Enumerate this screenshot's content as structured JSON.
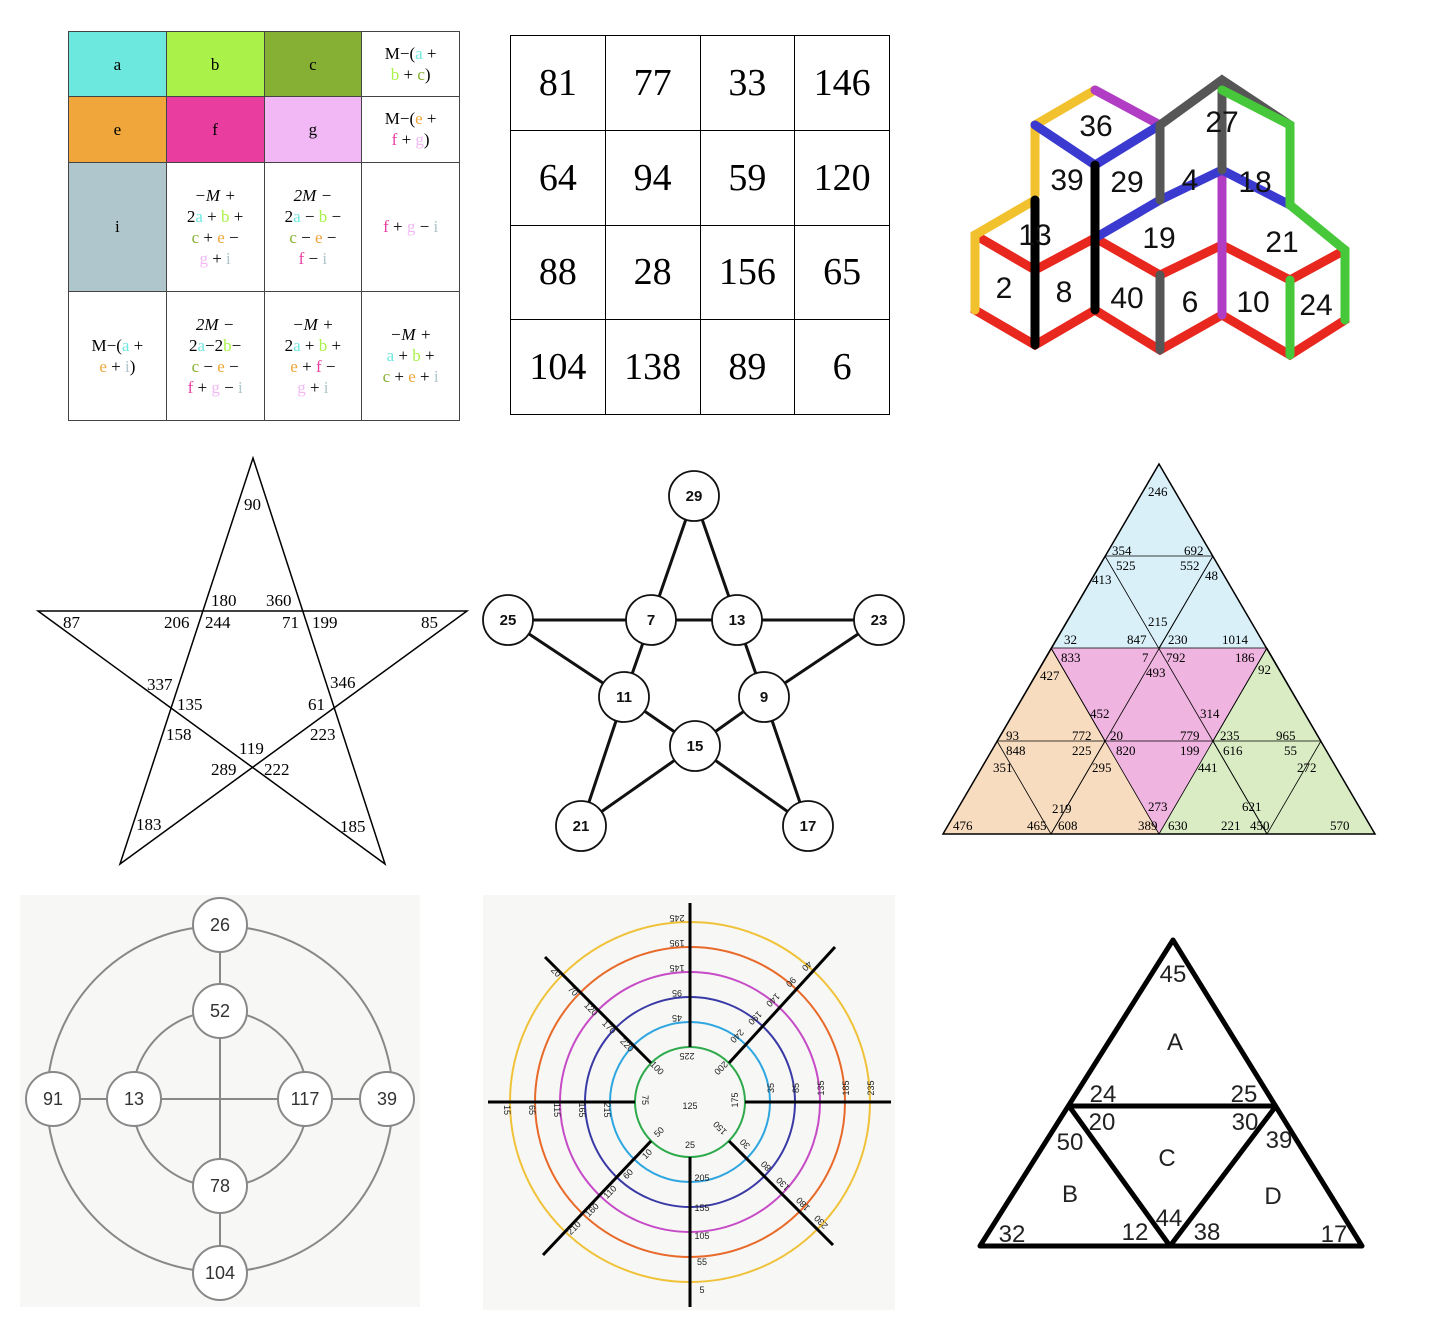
{
  "color_grid": {
    "colors": {
      "a": "#6ce8de",
      "b": "#aaf24a",
      "c": "#86b033",
      "e": "#f0a63a",
      "f": "#e93da0",
      "g": "#f2b8f6",
      "i": "#afc7cc"
    },
    "row1": {
      "a": "a",
      "b": "b",
      "c": "c",
      "d_prefix": "M−(",
      "d_a": "a",
      "d_plus1": " + ",
      "d_b": "b",
      "d_plus2": " + ",
      "d_c": "c",
      "d_suffix": ")"
    },
    "row2": {
      "e": "e",
      "f": "f",
      "g": "g",
      "d_prefix": "M−(",
      "d_e": "e",
      "d_plus1": " + ",
      "d_f": "f",
      "d_plus2": " + ",
      "d_g": "g",
      "d_suffix": ")"
    },
    "row3": {
      "i": "i",
      "b_t1": "−M +",
      "b_t2": "2",
      "b_a": "a",
      "b_p1": " + ",
      "b_b": "b",
      "b_p2": " +",
      "b_c": "c",
      "b_p3": " + ",
      "b_e": "e",
      "b_p4": " −",
      "b_g": "g",
      "b_p5": " + ",
      "b_i": "i",
      "c_t1": "2M −",
      "c_t2": "2",
      "c_a": "a",
      "c_m1": " − ",
      "c_b": "b",
      "c_m2": " −",
      "c_c": "c",
      "c_m3": " − ",
      "c_e": "e",
      "c_m4": " −",
      "c_f": "f",
      "c_m5": " − ",
      "c_i": "i",
      "d_f": "f",
      "d_p1": " + ",
      "d_g": "g",
      "d_m1": " − ",
      "d_i": "i"
    },
    "row4": {
      "a_prefix": "M−(",
      "a_a": "a",
      "a_p1": " +",
      "a_e": "e",
      "a_p2": " + ",
      "a_i": "i",
      "a_suffix": ")",
      "b_t1": "2M −",
      "b_t2": "2",
      "b_a": "a",
      "b_m1": "−2",
      "b_b": "b",
      "b_m2": "−",
      "b_c": "c",
      "b_m3": " − ",
      "b_e": "e",
      "b_m4": " −",
      "b_f": "f",
      "b_p1": " + ",
      "b_g": "g",
      "b_m5": " − ",
      "b_i": "i",
      "c_t1": "−M +",
      "c_t2": "2",
      "c_a": "a",
      "c_p1": " + ",
      "c_b": "b",
      "c_p2": " +",
      "c_e": "e",
      "c_p3": " + ",
      "c_f": "f",
      "c_m1": " −",
      "c_g": "g",
      "c_p4": " + ",
      "c_i": "i",
      "d_t1": "−M +",
      "d_a": "a",
      "d_p1": " + ",
      "d_b": "b",
      "d_p2": " +",
      "d_c": "c",
      "d_p3": " + ",
      "d_e": "e",
      "d_p4": " + ",
      "d_i": "i"
    }
  },
  "number_grid": {
    "rows": [
      [
        "81",
        "77",
        "33",
        "146"
      ],
      [
        "64",
        "94",
        "59",
        "120"
      ],
      [
        "88",
        "28",
        "156",
        "65"
      ],
      [
        "104",
        "138",
        "89",
        "6"
      ]
    ]
  },
  "cubes": {
    "numbers": [
      "36",
      "27",
      "39",
      "29",
      "4",
      "18",
      "13",
      "19",
      "21",
      "2",
      "8",
      "40",
      "6",
      "10",
      "24"
    ],
    "edge_colors": {
      "red": "#e8271e",
      "yellow": "#f2c12e",
      "purple": "#b13dc4",
      "blue": "#3a3ad0",
      "grey": "#565656",
      "green": "#47c83a",
      "black": "#000000"
    }
  },
  "star": {
    "numbers": [
      "90",
      "180",
      "360",
      "87",
      "206",
      "244",
      "71",
      "199",
      "85",
      "337",
      "135",
      "61",
      "346",
      "158",
      "119",
      "223",
      "289",
      "222",
      "183",
      "185"
    ]
  },
  "circle_star": {
    "nodes": [
      "29",
      "25",
      "7",
      "13",
      "23",
      "11",
      "9",
      "15",
      "21",
      "17"
    ]
  },
  "triangle_grid": {
    "colors": {
      "blue": "#d9f0f9",
      "pink": "#f0b4e0",
      "orange": "#f8dcc0",
      "green": "#d9ecc4"
    },
    "numbers": [
      "246",
      "354",
      "692",
      "525",
      "552",
      "413",
      "48",
      "215",
      "32",
      "847",
      "230",
      "1014",
      "833",
      "7",
      "792",
      "186",
      "493",
      "92",
      "427",
      "452",
      "314",
      "93",
      "772",
      "20",
      "779",
      "235",
      "965",
      "848",
      "225",
      "820",
      "199",
      "616",
      "55",
      "351",
      "295",
      "441",
      "272",
      "219",
      "621",
      "273",
      "476",
      "465",
      "608",
      "389",
      "630",
      "221",
      "450",
      "570"
    ]
  },
  "concentric": {
    "nodes": [
      "26",
      "52",
      "91",
      "13",
      "117",
      "39",
      "78",
      "104"
    ]
  },
  "target": {
    "ring_colors": [
      "#2eaa4c",
      "#2fa6e0",
      "#3a3aa6",
      "#c64bc6",
      "#e86a2a",
      "#f0c23a"
    ],
    "center": "125",
    "labels": [
      "245",
      "195",
      "145",
      "95",
      "45",
      "225",
      "40",
      "90",
      "140",
      "190",
      "240",
      "200",
      "15",
      "65",
      "115",
      "165",
      "215",
      "75",
      "235",
      "185",
      "135",
      "85",
      "35",
      "175",
      "20",
      "70",
      "120",
      "170",
      "220",
      "100",
      "10",
      "60",
      "110",
      "160",
      "210",
      "50",
      "5",
      "55",
      "105",
      "155",
      "205",
      "25",
      "30",
      "80",
      "130",
      "180",
      "230",
      "150"
    ]
  },
  "abcd_triangle": {
    "labels": [
      "45",
      "A",
      "24",
      "25",
      "20",
      "30",
      "50",
      "C",
      "39",
      "B",
      "D",
      "44",
      "32",
      "12",
      "38",
      "17"
    ]
  }
}
